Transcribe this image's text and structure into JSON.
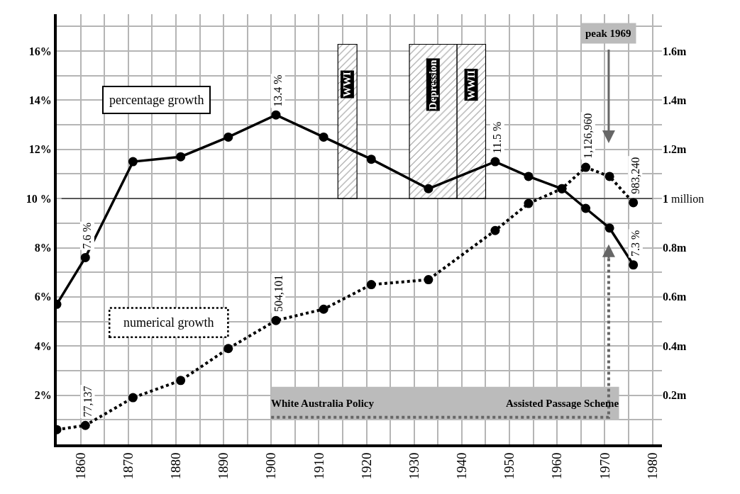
{
  "chart_data": {
    "type": "line",
    "x": [
      1855,
      1861,
      1871,
      1881,
      1891,
      1901,
      1911,
      1921,
      1933,
      1947,
      1954,
      1961,
      1966,
      1971,
      1976
    ],
    "series": [
      {
        "name": "percentage growth",
        "color": "#000000",
        "line_style": "solid",
        "values": [
          5.7,
          7.6,
          11.5,
          11.7,
          12.5,
          13.4,
          12.5,
          11.6,
          10.4,
          11.5,
          10.9,
          10.4,
          9.6,
          8.8,
          7.3
        ],
        "value_labels": [
          null,
          "7.6 %",
          null,
          null,
          null,
          "13.4 %",
          null,
          null,
          null,
          "11.5 %",
          null,
          null,
          null,
          null,
          "7.3 %"
        ]
      },
      {
        "name": "numerical growth",
        "color": "#000000",
        "line_style": "dotted",
        "axis": "y2",
        "values": [
          60000,
          77137,
          190000,
          260000,
          390000,
          504101,
          550000,
          650000,
          670000,
          870000,
          980000,
          1040000,
          1126960,
          1090000,
          983240
        ],
        "value_labels": [
          null,
          "77,137",
          null,
          null,
          null,
          "504,101",
          null,
          null,
          null,
          null,
          null,
          null,
          "1,126,960",
          null,
          "983,240"
        ]
      }
    ],
    "xlim": [
      1855,
      1982
    ],
    "xticks": [
      1860,
      1870,
      1880,
      1890,
      1900,
      1910,
      1920,
      1930,
      1940,
      1950,
      1960,
      1970,
      1980
    ],
    "ylim": [
      0,
      17.5
    ],
    "yticks": [
      {
        "value": 2,
        "label": "2%"
      },
      {
        "value": 4,
        "label": "4%"
      },
      {
        "value": 6,
        "label": "6%"
      },
      {
        "value": 8,
        "label": "8%"
      },
      {
        "value": 10,
        "label": "10 %"
      },
      {
        "value": 12,
        "label": "12%"
      },
      {
        "value": 14,
        "label": "14%"
      },
      {
        "value": 16,
        "label": "16%"
      }
    ],
    "y2lim": [
      0,
      1750000
    ],
    "y2ticks": [
      {
        "value": 200000,
        "label": "0.2m"
      },
      {
        "value": 400000,
        "label": "0.4m"
      },
      {
        "value": 600000,
        "label": "0.6m"
      },
      {
        "value": 800000,
        "label": "0.8m"
      },
      {
        "value": 1000000,
        "label": "1 million"
      },
      {
        "value": 1200000,
        "label": "1.2m"
      },
      {
        "value": 1400000,
        "label": "1.4m"
      },
      {
        "value": 1600000,
        "label": "1.6m"
      }
    ],
    "ref_lines": [
      {
        "axis": "y",
        "value": 10,
        "color": "#000000"
      }
    ],
    "bands": [
      {
        "axis": "x",
        "from": 1914,
        "to": 1918,
        "label": "WWI"
      },
      {
        "axis": "x",
        "from": 1929,
        "to": 1939,
        "label": "Depression"
      },
      {
        "axis": "x",
        "from": 1939,
        "to": 1945,
        "label": "WWII"
      }
    ],
    "annotations": [
      "peak 1969",
      "White Australia Policy",
      "Assisted Passage Scheme"
    ],
    "grid": true,
    "marker": "circle",
    "legend": false
  }
}
